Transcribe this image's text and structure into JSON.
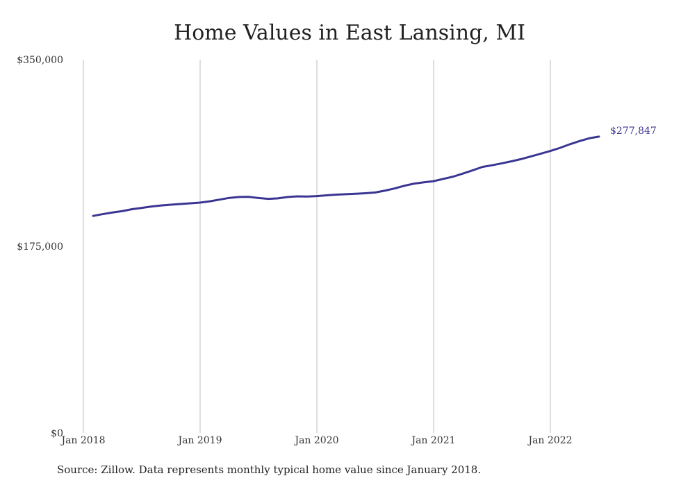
{
  "chart_data": {
    "type": "line",
    "title": "Home Values in East Lansing, MI",
    "xlabel": "",
    "ylabel": "",
    "x_start": "2018-01",
    "x_end": "2022-12",
    "xlim": [
      "2018-01",
      "2022-12"
    ],
    "ylim": [
      0,
      350000
    ],
    "yticks": [
      0,
      175000,
      350000
    ],
    "ytick_labels": [
      "$0",
      "$175,000",
      "$350,000"
    ],
    "xticks": [
      "2018-01",
      "2019-01",
      "2020-01",
      "2021-01",
      "2022-01"
    ],
    "xtick_labels": [
      "Jan 2018",
      "Jan 2019",
      "Jan 2020",
      "Jan 2021",
      "Jan 2022"
    ],
    "grid": "vertical",
    "series": [
      {
        "color": "#3a3592",
        "end_label": "$277,847",
        "points": [
          [
            "2018-02",
            203500
          ],
          [
            "2018-03",
            205200
          ],
          [
            "2018-04",
            206700
          ],
          [
            "2018-05",
            208000
          ],
          [
            "2018-06",
            209800
          ],
          [
            "2018-07",
            211000
          ],
          [
            "2018-08",
            212300
          ],
          [
            "2018-09",
            213300
          ],
          [
            "2018-10",
            214000
          ],
          [
            "2018-11",
            214700
          ],
          [
            "2018-12",
            215300
          ],
          [
            "2019-01",
            216000
          ],
          [
            "2019-02",
            217200
          ],
          [
            "2019-03",
            218800
          ],
          [
            "2019-04",
            220400
          ],
          [
            "2019-05",
            221300
          ],
          [
            "2019-06",
            221400
          ],
          [
            "2019-07",
            220300
          ],
          [
            "2019-08",
            219500
          ],
          [
            "2019-09",
            220000
          ],
          [
            "2019-10",
            221300
          ],
          [
            "2019-11",
            221800
          ],
          [
            "2019-12",
            221700
          ],
          [
            "2020-01",
            222100
          ],
          [
            "2020-02",
            222800
          ],
          [
            "2020-03",
            223500
          ],
          [
            "2020-04",
            223900
          ],
          [
            "2020-05",
            224300
          ],
          [
            "2020-06",
            224800
          ],
          [
            "2020-07",
            225500
          ],
          [
            "2020-08",
            227200
          ],
          [
            "2020-09",
            229300
          ],
          [
            "2020-10",
            231800
          ],
          [
            "2020-11",
            233800
          ],
          [
            "2020-12",
            235000
          ],
          [
            "2021-01",
            236100
          ],
          [
            "2021-02",
            238200
          ],
          [
            "2021-03",
            240300
          ],
          [
            "2021-04",
            243200
          ],
          [
            "2021-05",
            246200
          ],
          [
            "2021-06",
            249400
          ],
          [
            "2021-07",
            251000
          ],
          [
            "2021-08",
            252800
          ],
          [
            "2021-09",
            254700
          ],
          [
            "2021-10",
            256800
          ],
          [
            "2021-11",
            259300
          ],
          [
            "2021-12",
            261800
          ],
          [
            "2022-01",
            264400
          ],
          [
            "2022-02",
            267300
          ],
          [
            "2022-03",
            270700
          ],
          [
            "2022-04",
            273700
          ],
          [
            "2022-05",
            276300
          ],
          [
            "2022-06",
            277847
          ]
        ]
      }
    ]
  },
  "source_note": "Source: Zillow. Data represents monthly typical home value since January 2018."
}
